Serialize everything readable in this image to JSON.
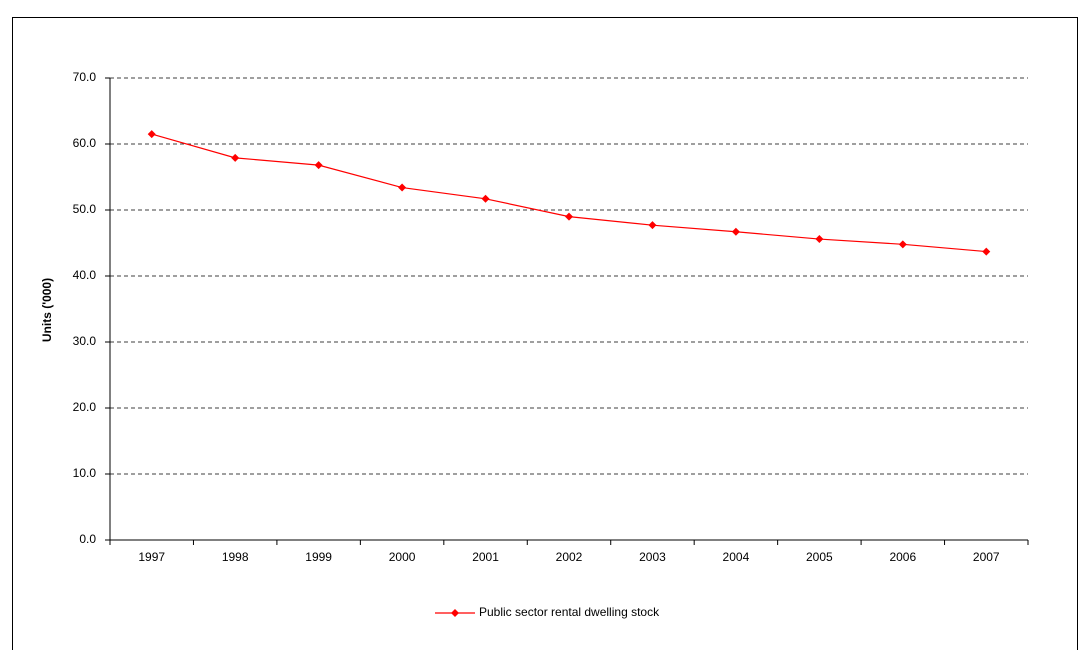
{
  "chart_data": {
    "type": "line",
    "y_label": "Units ('000)",
    "categories": [
      "1997",
      "1998",
      "1999",
      "2000",
      "2001",
      "2002",
      "2003",
      "2004",
      "2005",
      "2006",
      "2007"
    ],
    "series": [
      {
        "name": "Public sector rental dwelling stock",
        "color": "#ff0000",
        "values": [
          61.5,
          57.9,
          56.8,
          53.4,
          51.7,
          49.0,
          47.7,
          46.7,
          45.6,
          44.8,
          43.7
        ]
      }
    ],
    "ylim": [
      0,
      70
    ],
    "yticks": [
      {
        "value": 0,
        "label": "0.0"
      },
      {
        "value": 10,
        "label": "10.0"
      },
      {
        "value": 20,
        "label": "20.0"
      },
      {
        "value": 30,
        "label": "30.0"
      },
      {
        "value": 40,
        "label": "40.0"
      },
      {
        "value": 50,
        "label": "50.0"
      },
      {
        "value": 60,
        "label": "60.0"
      },
      {
        "value": 70,
        "label": "70.0"
      }
    ],
    "grid": true,
    "legend": "bottom"
  }
}
